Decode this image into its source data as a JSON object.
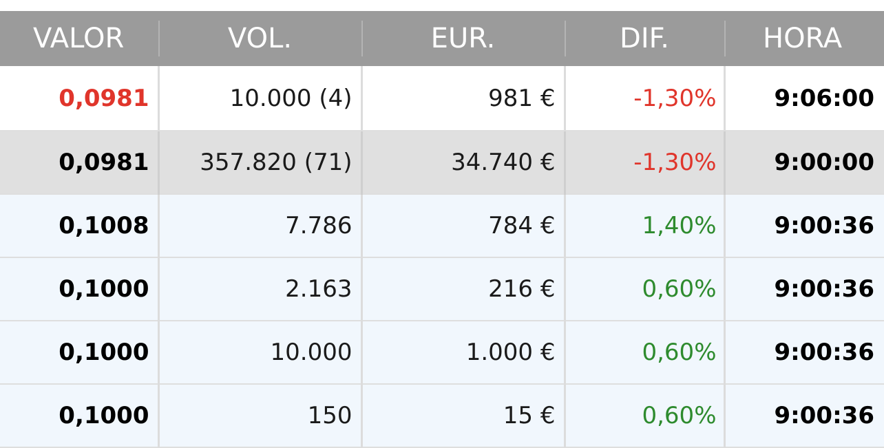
{
  "table": {
    "headers": {
      "valor": "VALOR",
      "vol": "VOL.",
      "eur": "EUR.",
      "dif": "DIF.",
      "hora": "HORA"
    },
    "rows": [
      {
        "valor": "0,0981",
        "vol": "10.000 (4)",
        "eur": "981 €",
        "dif": "-1,30%",
        "hora": "9:06:00"
      },
      {
        "valor": "0,0981",
        "vol": "357.820 (71)",
        "eur": "34.740 €",
        "dif": "-1,30%",
        "hora": "9:00:00"
      },
      {
        "valor": "0,1008",
        "vol": "7.786",
        "eur": "784 €",
        "dif": "1,40%",
        "hora": "9:00:36"
      },
      {
        "valor": "0,1000",
        "vol": "2.163",
        "eur": "216 €",
        "dif": "0,60%",
        "hora": "9:00:36"
      },
      {
        "valor": "0,1000",
        "vol": "10.000",
        "eur": "1.000 €",
        "dif": "0,60%",
        "hora": "9:00:36"
      },
      {
        "valor": "0,1000",
        "vol": "150",
        "eur": "15 €",
        "dif": "0,60%",
        "hora": "9:00:36"
      }
    ]
  },
  "colors": {
    "header_bg": "#9b9b9b",
    "negative": "#e0352b",
    "positive": "#2e8b2e",
    "summary_row_bg": "#e0e0e0",
    "trade_row_bg": "#f1f7fd"
  }
}
